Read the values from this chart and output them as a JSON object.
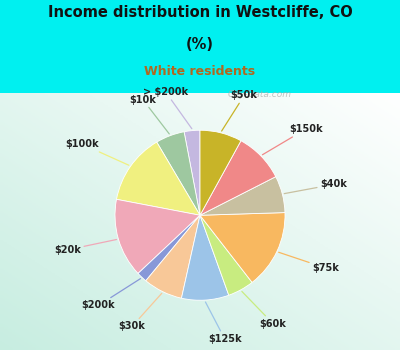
{
  "title_line1": "Income distribution in Westcliffe, CO",
  "title_line2": "(%)",
  "subtitle": "White residents",
  "title_color": "#111111",
  "subtitle_color": "#b06820",
  "bg_cyan": "#00f0f0",
  "bg_chart_color": "#d0ede0",
  "watermark": "City-Data.com",
  "labels": [
    "> $200k",
    "$10k",
    "$100k",
    "$20k",
    "$200k",
    "$30k",
    "$125k",
    "$60k",
    "$75k",
    "$40k",
    "$150k",
    "$50k"
  ],
  "values": [
    3.0,
    5.5,
    13.5,
    15.0,
    2.0,
    7.5,
    9.0,
    5.0,
    15.0,
    7.0,
    9.5,
    8.0
  ],
  "colors": [
    "#c4b8e0",
    "#9ec8a0",
    "#f0f080",
    "#f0a8b8",
    "#8898d8",
    "#f8c898",
    "#9cc4e8",
    "#c8ec80",
    "#f8b860",
    "#c8c0a0",
    "#f08888",
    "#c8b428"
  ],
  "start_angle": 90,
  "label_fontsize": 7.0
}
